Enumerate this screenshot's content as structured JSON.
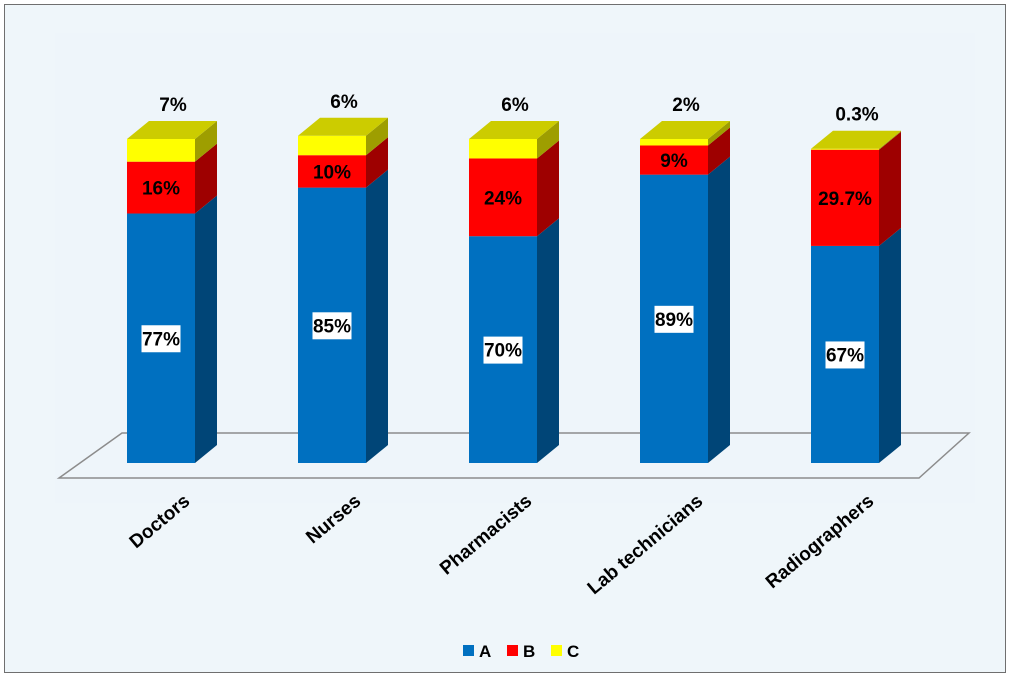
{
  "chart_data": {
    "type": "bar",
    "stacked": true,
    "three_d": true,
    "categories": [
      "Doctors",
      "Nurses",
      "Pharmacists",
      "Lab technicians",
      "Radiographers"
    ],
    "series": [
      {
        "name": "A",
        "color": "#0070c0",
        "values": [
          77,
          85,
          70,
          89,
          67
        ],
        "labels": [
          "77%",
          "85%",
          "70%",
          "89%",
          "67%"
        ]
      },
      {
        "name": "B",
        "color": "#ff0000",
        "values": [
          16,
          10,
          24,
          9,
          29.7
        ],
        "labels": [
          "16%",
          "10%",
          "24%",
          "9%",
          "29.7%"
        ]
      },
      {
        "name": "C",
        "color": "#ffff00",
        "values": [
          7,
          6,
          6,
          2,
          0.3
        ],
        "labels": [
          "7%",
          "6%",
          "6%",
          "2%",
          "0.3%"
        ]
      }
    ],
    "ylim": [
      0,
      100
    ],
    "grid": false,
    "legend": "bottom",
    "title": "",
    "xlabel": "",
    "ylabel": ""
  }
}
